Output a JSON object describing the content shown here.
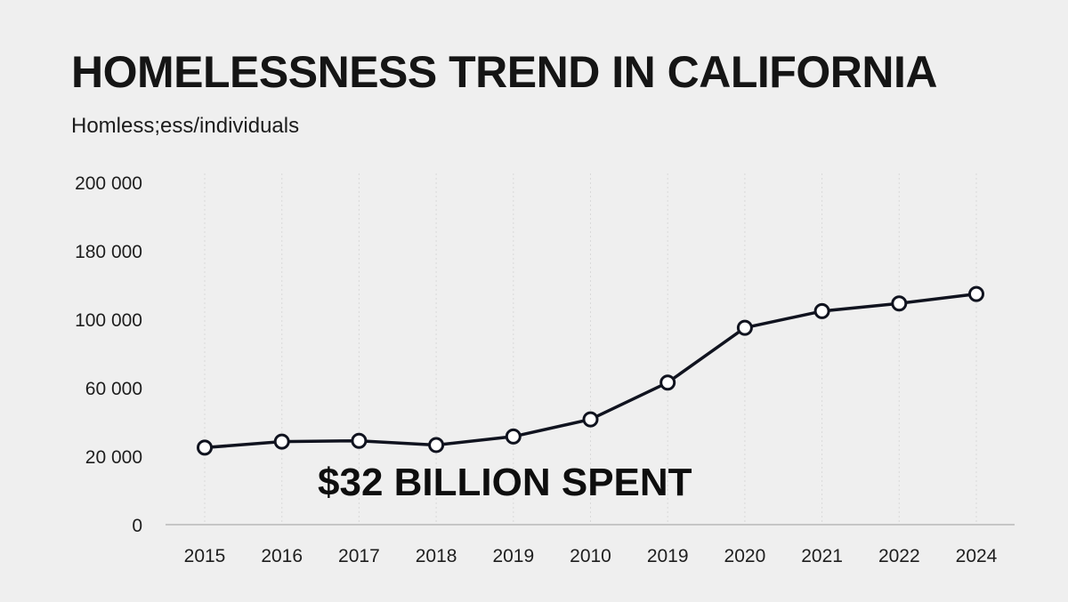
{
  "chart_data": {
    "type": "line",
    "title": "HOMELESSNESS TREND IN CALIFORNIA",
    "ylabel": "Homless;ess/individuals",
    "xlabel": "",
    "categories": [
      "2015",
      "2016",
      "2017",
      "2018",
      "2019",
      "2010",
      "2019",
      "2020",
      "2021",
      "2022",
      "2024"
    ],
    "y_tick_labels": [
      "0",
      "20 000",
      "60 000",
      "100 000",
      "180 000",
      "200 000"
    ],
    "y_tick_values": [
      0,
      20000,
      60000,
      100000,
      180000,
      200000
    ],
    "series": [
      {
        "name": "Homelessness",
        "values": [
          25000,
          28500,
          29000,
          26500,
          31500,
          41500,
          63000,
          95000,
          109500,
          118500,
          129500
        ]
      }
    ],
    "grid": "vertical",
    "annotation": "$32 BILLION SPENT",
    "colors": {
      "line": "#10131f",
      "marker_fill": "#ffffff",
      "grid": "#d9d9d9",
      "axis": "#b8b8b8",
      "background": "#efefef"
    }
  }
}
